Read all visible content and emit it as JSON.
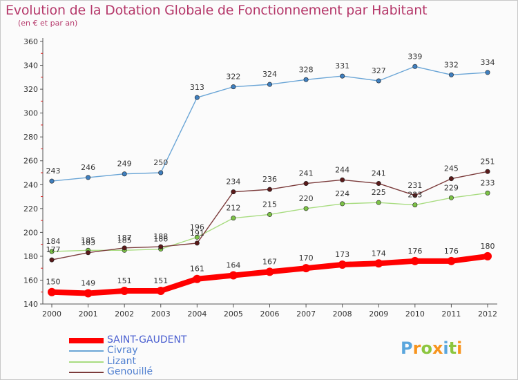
{
  "header": {
    "title": "Evolution de la Dotation Globale de Fonctionnement par Habitant",
    "subtitle": "(en € et par an)"
  },
  "chart_data": {
    "type": "line",
    "title": "Evolution de la Dotation Globale de Fonctionnement par Habitant",
    "subtitle": "(en € et par an)",
    "xlabel": "",
    "ylabel": "",
    "ylim": [
      140,
      360
    ],
    "y_ticks": [
      140,
      160,
      180,
      200,
      220,
      240,
      260,
      280,
      300,
      320,
      340,
      360
    ],
    "grid": false,
    "legend_position": "bottom-left",
    "x": [
      "2000",
      "2001",
      "2002",
      "2003",
      "2004",
      "2005",
      "2006",
      "2007",
      "2008",
      "2009",
      "2010",
      "2011",
      "2012"
    ],
    "series": [
      {
        "name": "SAINT-GAUDENT",
        "color": "#ff0000",
        "marker": "#ff0000",
        "emphasis": true,
        "values": [
          150,
          149,
          151,
          151,
          161,
          164,
          167,
          170,
          173,
          174,
          176,
          176,
          180
        ]
      },
      {
        "name": "Civray",
        "color": "#6aa5d6",
        "marker": "#3f7fbf",
        "values": [
          243,
          246,
          249,
          250,
          313,
          322,
          324,
          328,
          331,
          327,
          339,
          332,
          334
        ]
      },
      {
        "name": "Lizant",
        "color": "#a8dc80",
        "marker": "#7cc246",
        "values": [
          184,
          185,
          185,
          186,
          196,
          212,
          215,
          220,
          224,
          225,
          223,
          229,
          233
        ]
      },
      {
        "name": "Genouillé",
        "color": "#7b3b3b",
        "marker": "#5a1a1a",
        "values": [
          177,
          183,
          187,
          188,
          191,
          234,
          236,
          241,
          244,
          241,
          231,
          245,
          251
        ]
      }
    ]
  },
  "logo": {
    "letters": [
      "P",
      "r",
      "o",
      "x",
      "i",
      "t",
      "i"
    ],
    "colors": [
      "#5aa6dd",
      "#f7941d",
      "#8cc63f",
      "#f7941d",
      "#5aa6dd",
      "#8cc63f",
      "#f7941d"
    ]
  }
}
